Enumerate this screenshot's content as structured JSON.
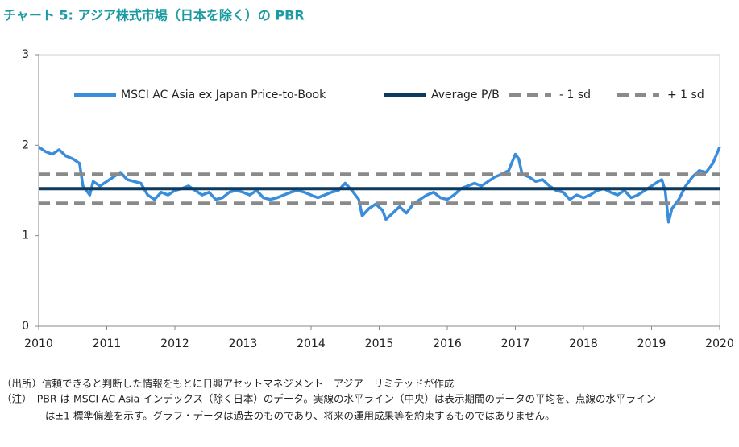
{
  "chart_data": {
    "type": "line",
    "title": "チャート 5: アジア株式市場（日本を除く）の PBR",
    "x": [
      2010.0,
      2010.1,
      2010.2,
      2010.3,
      2010.4,
      2010.5,
      2010.6,
      2010.65,
      2010.75,
      2010.8,
      2010.9,
      2011.0,
      2011.1,
      2011.2,
      2011.3,
      2011.4,
      2011.5,
      2011.6,
      2011.7,
      2011.8,
      2011.9,
      2012.0,
      2012.1,
      2012.2,
      2012.3,
      2012.4,
      2012.5,
      2012.6,
      2012.7,
      2012.8,
      2012.9,
      2013.0,
      2013.1,
      2013.2,
      2013.3,
      2013.4,
      2013.5,
      2013.6,
      2013.7,
      2013.8,
      2013.9,
      2014.0,
      2014.1,
      2014.2,
      2014.3,
      2014.4,
      2014.5,
      2014.6,
      2014.7,
      2014.75,
      2014.85,
      2014.95,
      2015.05,
      2015.1,
      2015.2,
      2015.3,
      2015.4,
      2015.5,
      2015.6,
      2015.7,
      2015.8,
      2015.9,
      2016.0,
      2016.1,
      2016.2,
      2016.3,
      2016.4,
      2016.5,
      2016.6,
      2016.7,
      2016.8,
      2016.9,
      2017.0,
      2017.05,
      2017.1,
      2017.2,
      2017.3,
      2017.4,
      2017.5,
      2017.6,
      2017.7,
      2017.8,
      2017.9,
      2018.0,
      2018.1,
      2018.2,
      2018.3,
      2018.4,
      2018.5,
      2018.6,
      2018.7,
      2018.8,
      2018.9,
      2019.0,
      2019.1,
      2019.15,
      2019.2,
      2019.25,
      2019.3,
      2019.4,
      2019.5,
      2019.6,
      2019.7,
      2019.8,
      2019.9,
      2020.0
    ],
    "series": [
      {
        "name": "MSCI AC Asia ex Japan Price-to-Book",
        "color": "#3a8ddb",
        "values": [
          1.98,
          1.93,
          1.9,
          1.95,
          1.88,
          1.85,
          1.8,
          1.55,
          1.45,
          1.6,
          1.55,
          1.6,
          1.65,
          1.7,
          1.62,
          1.6,
          1.58,
          1.45,
          1.4,
          1.48,
          1.45,
          1.5,
          1.52,
          1.55,
          1.5,
          1.45,
          1.48,
          1.4,
          1.42,
          1.48,
          1.5,
          1.48,
          1.45,
          1.5,
          1.42,
          1.4,
          1.42,
          1.45,
          1.48,
          1.5,
          1.48,
          1.45,
          1.42,
          1.45,
          1.48,
          1.5,
          1.58,
          1.5,
          1.4,
          1.22,
          1.3,
          1.35,
          1.28,
          1.18,
          1.25,
          1.32,
          1.25,
          1.35,
          1.4,
          1.45,
          1.48,
          1.42,
          1.4,
          1.45,
          1.52,
          1.55,
          1.58,
          1.55,
          1.6,
          1.65,
          1.68,
          1.72,
          1.9,
          1.85,
          1.68,
          1.65,
          1.6,
          1.62,
          1.55,
          1.5,
          1.48,
          1.4,
          1.45,
          1.42,
          1.45,
          1.5,
          1.52,
          1.48,
          1.45,
          1.5,
          1.42,
          1.45,
          1.5,
          1.55,
          1.6,
          1.62,
          1.5,
          1.15,
          1.3,
          1.4,
          1.55,
          1.65,
          1.72,
          1.7,
          1.8,
          1.98
        ]
      },
      {
        "name": "Average P/B",
        "color": "#0d3a5f",
        "x": [
          2010,
          2020
        ],
        "values": [
          1.52,
          1.52
        ]
      },
      {
        "name": "- 1 sd",
        "color": "#8a8a8a",
        "dash": true,
        "x": [
          2010,
          2020
        ],
        "values": [
          1.36,
          1.36
        ]
      },
      {
        "name": "+ 1 sd",
        "color": "#8a8a8a",
        "dash": true,
        "x": [
          2010,
          2020
        ],
        "values": [
          1.68,
          1.68
        ]
      }
    ],
    "xlim": [
      2010,
      2020
    ],
    "xticks": [
      2010,
      2011,
      2012,
      2013,
      2014,
      2015,
      2016,
      2017,
      2018,
      2019,
      2020
    ],
    "ylim": [
      0,
      3
    ],
    "yticks": [
      0,
      1,
      2,
      3
    ],
    "legend": "top",
    "notes": [
      "（出所）信頼できると判断した情報をもとに日興アセットマネジメント　アジア　リミテッドが作成",
      "（注）　PBR は MSCI AC Asia インデックス（除く日本）のデータ。実線の水平ライン（中央）は表示期間のデータの平均を、点線の水平ライン",
      "は±1 標準偏差を示す。グラフ・データは過去のものであり、将来の運用成果等を約束するものではありません。"
    ]
  }
}
